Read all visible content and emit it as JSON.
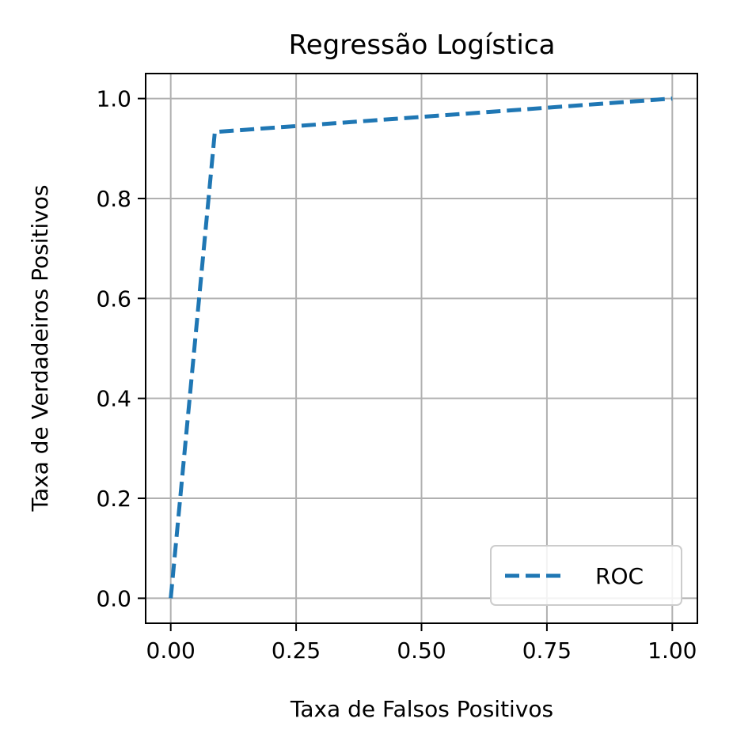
{
  "chart_data": {
    "type": "line",
    "title": "Regressão Logística",
    "xlabel": "Taxa de Falsos Positivos",
    "ylabel": "Taxa de Verdadeiros Positivos",
    "xlim": [
      -0.05,
      1.05
    ],
    "ylim": [
      -0.05,
      1.05
    ],
    "xticks": [
      0.0,
      0.25,
      0.5,
      0.75,
      1.0
    ],
    "xtick_labels": [
      "0.00",
      "0.25",
      "0.50",
      "0.75",
      "1.00"
    ],
    "yticks": [
      0.0,
      0.2,
      0.4,
      0.6,
      0.8,
      1.0
    ],
    "ytick_labels": [
      "0.0",
      "0.2",
      "0.4",
      "0.6",
      "0.8",
      "1.0"
    ],
    "grid": true,
    "legend_position": "lower-right",
    "series": [
      {
        "name": "ROC",
        "x": [
          0.0,
          0.088,
          1.0
        ],
        "y": [
          0.0,
          0.933,
          1.0
        ],
        "color": "#1f77b4",
        "style": "dashed"
      }
    ]
  }
}
